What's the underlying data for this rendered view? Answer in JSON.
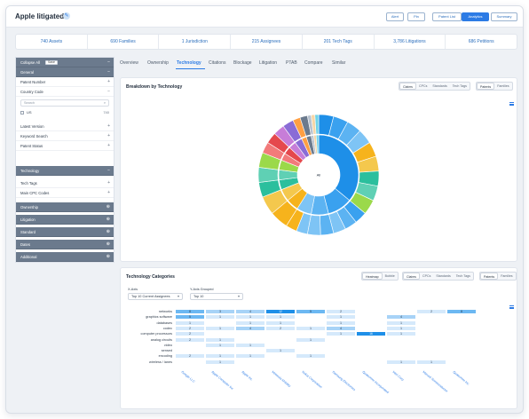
{
  "header": {
    "title": "Apple litigated",
    "buttons": [
      "Alert",
      "Pin",
      "Patent List",
      "Analytics",
      "Summary"
    ]
  },
  "stats": [
    "740 Assets",
    "690 Families",
    "1 Jurisdiction",
    "215 Assignees",
    "201 Tech Tags",
    "3,786 Litigations",
    "686 Petitions"
  ],
  "sidebar": {
    "collapse_all": "Collapse All",
    "save": "Save",
    "general": "General",
    "patent_number": "Patent Number",
    "country_code": "Country Code",
    "search_placeholder": "Search",
    "us_label": "US",
    "us_count": "740",
    "latest_version": "Latest Version",
    "keyword_search": "Keyword Search",
    "patent_status": "Patent Status",
    "technology": "Technology",
    "tech_tags": "Tech Tags",
    "main_cpc_codes": "Main CPC Codes",
    "ownership": "Ownership",
    "litigation": "Litigation",
    "standard": "Standard",
    "dates": "Dates",
    "additional": "Additional"
  },
  "tabs": [
    "Overview",
    "Ownership",
    "Technology",
    "Citations",
    "Blockage",
    "Litigation",
    "PTAB",
    "Compare",
    "Similar"
  ],
  "breakdown": {
    "title": "Breakdown by Technology",
    "seg1": [
      "Claims",
      "CPCs",
      "Standards",
      "Tech Tags"
    ],
    "seg2": [
      "Patents",
      "Families"
    ],
    "center_label": "All",
    "colors": [
      "#1e8fe8",
      "#3aa1ef",
      "#5cb3f2",
      "#7ec4f5",
      "#f6b31c",
      "#f4c84d",
      "#2bbf9d",
      "#5fd0b4",
      "#9bd94a",
      "#f27a7a",
      "#e5484d",
      "#c77dd8",
      "#8a6cd6",
      "#ff9f43",
      "#6b7a8d",
      "#b8c2cf",
      "#f7d6a6",
      "#6fd3e8"
    ]
  },
  "categories": {
    "title": "Technology Categories",
    "seg0": [
      "Heatmap",
      "Bubble"
    ],
    "seg1": [
      "Claims",
      "CPCs",
      "Standards",
      "Tech Tags"
    ],
    "seg2": [
      "Patents",
      "Families"
    ],
    "xaxis_label": "X-Axis",
    "xaxis_value": "Top 10 Current Assignees",
    "yaxis_label": "Y-Axis Grouped",
    "yaxis_value": "Top 10",
    "rows": [
      "networks",
      "graphics software",
      "databases",
      "codec",
      "computer processors",
      "analog circuits",
      "video",
      "sensed",
      "encoding",
      "wireless / lanes"
    ],
    "columns": [
      "Google LLC",
      "Apple Computer Inc",
      "Apple Inc",
      "Motorola Mobility",
      "Nokia Corporation",
      "Samsung Electronics",
      "Qualcomm Incorporated",
      "Intel Corp",
      "Marvell Semiconductor",
      "Qualcomm Inc"
    ],
    "cells": [
      [
        "8",
        "3",
        "4",
        "12",
        "5",
        "2",
        "",
        "",
        "2",
        "8"
      ],
      [
        "5",
        "1",
        "1",
        "1",
        "",
        "1",
        "",
        "4",
        "",
        ""
      ],
      [
        "1",
        "",
        "1",
        "1",
        "",
        "1",
        "",
        "1",
        "",
        ""
      ],
      [
        "2",
        "1",
        "4",
        "2",
        "1",
        "4",
        "",
        "1",
        "",
        ""
      ],
      [
        "2",
        "",
        "",
        "",
        "",
        "1",
        "16",
        "1",
        "",
        ""
      ],
      [
        "2",
        "1",
        "",
        "",
        "1",
        "",
        "",
        "",
        "",
        ""
      ],
      [
        "",
        "1",
        "1",
        "",
        "",
        "",
        "",
        "",
        "",
        ""
      ],
      [
        "",
        "",
        "",
        "1",
        "",
        "",
        "",
        "",
        "",
        ""
      ],
      [
        "2",
        "1",
        "1",
        "",
        "1",
        "",
        "",
        "",
        "",
        ""
      ],
      [
        "",
        "1",
        "",
        "",
        "",
        "",
        "",
        "1",
        "1",
        ""
      ]
    ]
  }
}
